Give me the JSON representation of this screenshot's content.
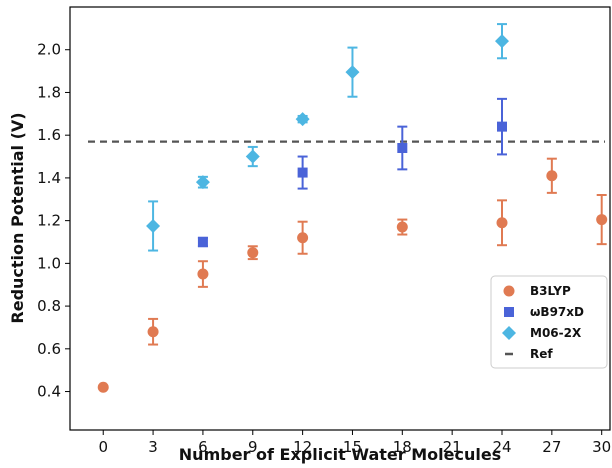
{
  "chart_data": {
    "type": "scatter",
    "xlabel": "Number of Explicit Water Molecules",
    "ylabel": "Reduction Potential (V)",
    "xlim": [
      -2,
      30.5
    ],
    "ylim": [
      0.22,
      2.2
    ],
    "xticks": [
      0,
      3,
      6,
      9,
      12,
      15,
      18,
      21,
      24,
      27,
      30
    ],
    "yticks": [
      0.4,
      0.6,
      0.8,
      1.0,
      1.2,
      1.4,
      1.6,
      1.8,
      2.0
    ],
    "ytick_labels": [
      "0.4",
      "0.6",
      "0.8",
      "1.0",
      "1.2",
      "1.4",
      "1.6",
      "1.8",
      "2.0"
    ],
    "grid": false,
    "legend_position": "lower-right",
    "reference": {
      "name": "Ref",
      "value": 1.57,
      "color": "#555555"
    },
    "series": [
      {
        "name": "B3LYP",
        "marker": "circle",
        "color": "#E07A52",
        "points": [
          {
            "x": 0,
            "y": 0.42,
            "err": 0.0
          },
          {
            "x": 3,
            "y": 0.68,
            "err": 0.06
          },
          {
            "x": 6,
            "y": 0.95,
            "err": 0.06
          },
          {
            "x": 9,
            "y": 1.05,
            "err": 0.03
          },
          {
            "x": 12,
            "y": 1.12,
            "err": 0.075
          },
          {
            "x": 18,
            "y": 1.17,
            "err": 0.035
          },
          {
            "x": 24,
            "y": 1.19,
            "err": 0.105
          },
          {
            "x": 27,
            "y": 1.41,
            "err": 0.08
          },
          {
            "x": 30,
            "y": 1.205,
            "err": 0.115
          }
        ]
      },
      {
        "name": "ωB97xD",
        "marker": "square",
        "color": "#4A63D8",
        "points": [
          {
            "x": 6,
            "y": 1.1,
            "err": 0.02
          },
          {
            "x": 12,
            "y": 1.425,
            "err": 0.075
          },
          {
            "x": 18,
            "y": 1.54,
            "err": 0.1
          },
          {
            "x": 24,
            "y": 1.64,
            "err": 0.13
          }
        ]
      },
      {
        "name": "M06-2X",
        "marker": "diamond",
        "color": "#4DB6E2",
        "points": [
          {
            "x": 3,
            "y": 1.175,
            "err": 0.115
          },
          {
            "x": 6,
            "y": 1.38,
            "err": 0.025
          },
          {
            "x": 9,
            "y": 1.5,
            "err": 0.045
          },
          {
            "x": 12,
            "y": 1.675,
            "err": 0.015
          },
          {
            "x": 15,
            "y": 1.895,
            "err": 0.115
          },
          {
            "x": 24,
            "y": 2.04,
            "err": 0.08
          }
        ]
      }
    ]
  }
}
